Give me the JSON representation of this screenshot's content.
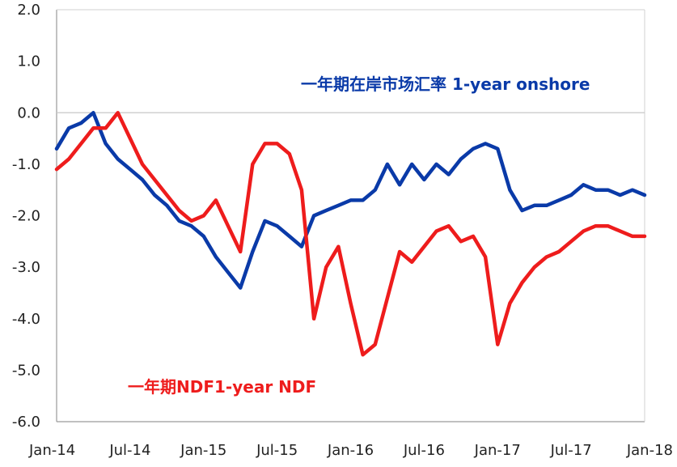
{
  "chart_data": {
    "type": "line",
    "title": "",
    "xlabel": "",
    "ylabel": "",
    "ylim": [
      -6.0,
      2.0
    ],
    "yticks": [
      "2.0",
      "1.0",
      "0.0",
      "-1.0",
      "-2.0",
      "-3.0",
      "-4.0",
      "-5.0",
      "-6.0"
    ],
    "xticks": [
      "Jan-14",
      "Jul-14",
      "Jan-15",
      "Jul-15",
      "Jan-16",
      "Jul-16",
      "Jan-17",
      "Jul-17",
      "Jan-18"
    ],
    "grid": false,
    "zero_line": true,
    "series": [
      {
        "name": "一年期在岸市场汇率 1-year onshore",
        "color": "#0a3aa8",
        "points": [
          [
            "Jan-14",
            -0.7
          ],
          [
            "Feb-14",
            -0.3
          ],
          [
            "Mar-14",
            -0.2
          ],
          [
            "Apr-14",
            0.0
          ],
          [
            "May-14",
            -0.6
          ],
          [
            "Jun-14",
            -0.9
          ],
          [
            "Jul-14",
            -1.1
          ],
          [
            "Aug-14",
            -1.3
          ],
          [
            "Sep-14",
            -1.6
          ],
          [
            "Oct-14",
            -1.8
          ],
          [
            "Nov-14",
            -2.1
          ],
          [
            "Dec-14",
            -2.2
          ],
          [
            "Jan-15",
            -2.4
          ],
          [
            "Feb-15",
            -2.8
          ],
          [
            "Mar-15",
            -3.1
          ],
          [
            "Apr-15",
            -3.4
          ],
          [
            "May-15",
            -2.7
          ],
          [
            "Jun-15",
            -2.1
          ],
          [
            "Jul-15",
            -2.2
          ],
          [
            "Aug-15",
            -2.4
          ],
          [
            "Sep-15",
            -2.6
          ],
          [
            "Oct-15",
            -2.0
          ],
          [
            "Nov-15",
            -1.9
          ],
          [
            "Dec-15",
            -1.8
          ],
          [
            "Jan-16",
            -1.7
          ],
          [
            "Feb-16",
            -1.7
          ],
          [
            "Mar-16",
            -1.5
          ],
          [
            "Apr-16",
            -1.0
          ],
          [
            "May-16",
            -1.4
          ],
          [
            "Jun-16",
            -1.0
          ],
          [
            "Jul-16",
            -1.3
          ],
          [
            "Aug-16",
            -1.0
          ],
          [
            "Sep-16",
            -1.2
          ],
          [
            "Oct-16",
            -0.9
          ],
          [
            "Nov-16",
            -0.7
          ],
          [
            "Dec-16",
            -0.6
          ],
          [
            "Jan-17",
            -0.7
          ],
          [
            "Feb-17",
            -1.5
          ],
          [
            "Mar-17",
            -1.9
          ],
          [
            "Apr-17",
            -1.8
          ],
          [
            "May-17",
            -1.8
          ],
          [
            "Jun-17",
            -1.7
          ],
          [
            "Jul-17",
            -1.6
          ],
          [
            "Aug-17",
            -1.4
          ],
          [
            "Sep-17",
            -1.5
          ],
          [
            "Oct-17",
            -1.5
          ],
          [
            "Nov-17",
            -1.6
          ],
          [
            "Dec-17",
            -1.5
          ],
          [
            "Jan-18",
            -1.6
          ]
        ]
      },
      {
        "name": "一年期NDF1-year NDF",
        "color": "#ee1c1c",
        "points": [
          [
            "Jan-14",
            -1.1
          ],
          [
            "Feb-14",
            -0.9
          ],
          [
            "Mar-14",
            -0.6
          ],
          [
            "Apr-14",
            -0.3
          ],
          [
            "May-14",
            -0.3
          ],
          [
            "Jun-14",
            0.0
          ],
          [
            "Jul-14",
            -0.5
          ],
          [
            "Aug-14",
            -1.0
          ],
          [
            "Sep-14",
            -1.3
          ],
          [
            "Oct-14",
            -1.6
          ],
          [
            "Nov-14",
            -1.9
          ],
          [
            "Dec-14",
            -2.1
          ],
          [
            "Jan-15",
            -2.0
          ],
          [
            "Feb-15",
            -1.7
          ],
          [
            "Mar-15",
            -2.2
          ],
          [
            "Apr-15",
            -2.7
          ],
          [
            "May-15",
            -1.0
          ],
          [
            "Jun-15",
            -0.6
          ],
          [
            "Jul-15",
            -0.6
          ],
          [
            "Aug-15",
            -0.8
          ],
          [
            "Sep-15",
            -1.5
          ],
          [
            "Oct-15",
            -4.0
          ],
          [
            "Nov-15",
            -3.0
          ],
          [
            "Dec-15",
            -2.6
          ],
          [
            "Jan-16",
            -3.7
          ],
          [
            "Feb-16",
            -4.7
          ],
          [
            "Mar-16",
            -4.5
          ],
          [
            "Apr-16",
            -3.6
          ],
          [
            "May-16",
            -2.7
          ],
          [
            "Jun-16",
            -2.9
          ],
          [
            "Jul-16",
            -2.6
          ],
          [
            "Aug-16",
            -2.3
          ],
          [
            "Sep-16",
            -2.2
          ],
          [
            "Oct-16",
            -2.5
          ],
          [
            "Nov-16",
            -2.4
          ],
          [
            "Dec-16",
            -2.8
          ],
          [
            "Jan-17",
            -4.5
          ],
          [
            "Feb-17",
            -3.7
          ],
          [
            "Mar-17",
            -3.3
          ],
          [
            "Apr-17",
            -3.0
          ],
          [
            "May-17",
            -2.8
          ],
          [
            "Jun-17",
            -2.7
          ],
          [
            "Jul-17",
            -2.5
          ],
          [
            "Aug-17",
            -2.3
          ],
          [
            "Sep-17",
            -2.2
          ],
          [
            "Oct-17",
            -2.2
          ],
          [
            "Nov-17",
            -2.3
          ],
          [
            "Dec-17",
            -2.4
          ],
          [
            "Jan-18",
            -2.4
          ]
        ]
      }
    ],
    "annotations": [
      {
        "text": "一年期在岸市场汇率",
        "en": " 1-year onshore",
        "series": 0
      },
      {
        "text": "一年期NDF1-year NDF",
        "series": 1
      }
    ]
  }
}
